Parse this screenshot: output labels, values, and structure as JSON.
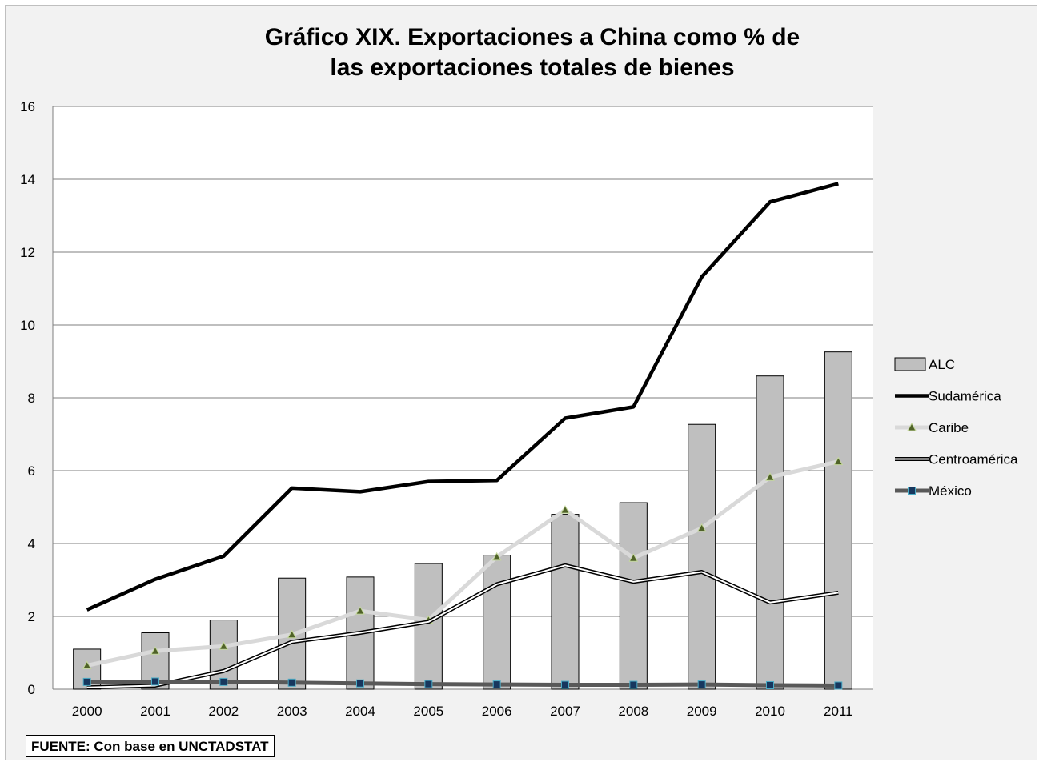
{
  "chart_data": {
    "type": "bar",
    "title": [
      "Gráfico XIX. Exportaciones a China como % de",
      "las exportaciones totales de bienes"
    ],
    "source": "FUENTE: Con base en UNCTADSTAT",
    "categories": [
      "2000",
      "2001",
      "2002",
      "2003",
      "2004",
      "2005",
      "2006",
      "2007",
      "2008",
      "2009",
      "2010",
      "2011"
    ],
    "ylim": [
      0,
      16
    ],
    "yticks": [
      "0",
      "2",
      "4",
      "6",
      "8",
      "10",
      "12",
      "14",
      "16"
    ],
    "grid": true,
    "legend_position": "right",
    "series": [
      {
        "name": "ALC",
        "kind": "bar",
        "color": "#bfbfbf",
        "values": [
          1.1,
          1.55,
          1.9,
          3.05,
          3.08,
          3.45,
          3.68,
          4.8,
          5.12,
          7.27,
          8.6,
          9.26
        ]
      },
      {
        "name": "Sudamérica",
        "kind": "line",
        "color": "#000000",
        "values": [
          2.18,
          3.02,
          3.65,
          5.52,
          5.42,
          5.7,
          5.73,
          7.44,
          7.75,
          11.32,
          13.38,
          13.88
        ]
      },
      {
        "name": "Caribe",
        "kind": "line-triangle",
        "color": "#d9d9d9",
        "marker_color": "#4f6228",
        "values": [
          0.65,
          1.05,
          1.18,
          1.5,
          2.15,
          1.9,
          3.63,
          4.92,
          3.6,
          4.42,
          5.82,
          6.25
        ]
      },
      {
        "name": "Centroamérica",
        "kind": "line-double",
        "color": "#000000",
        "values": [
          0.05,
          0.1,
          0.5,
          1.3,
          1.55,
          1.85,
          2.88,
          3.4,
          2.95,
          3.22,
          2.38,
          2.65
        ]
      },
      {
        "name": "México",
        "kind": "line-square",
        "color": "#595959",
        "marker_color": "#17375e",
        "values": [
          0.2,
          0.21,
          0.2,
          0.18,
          0.16,
          0.14,
          0.13,
          0.12,
          0.12,
          0.13,
          0.11,
          0.1
        ]
      }
    ]
  }
}
